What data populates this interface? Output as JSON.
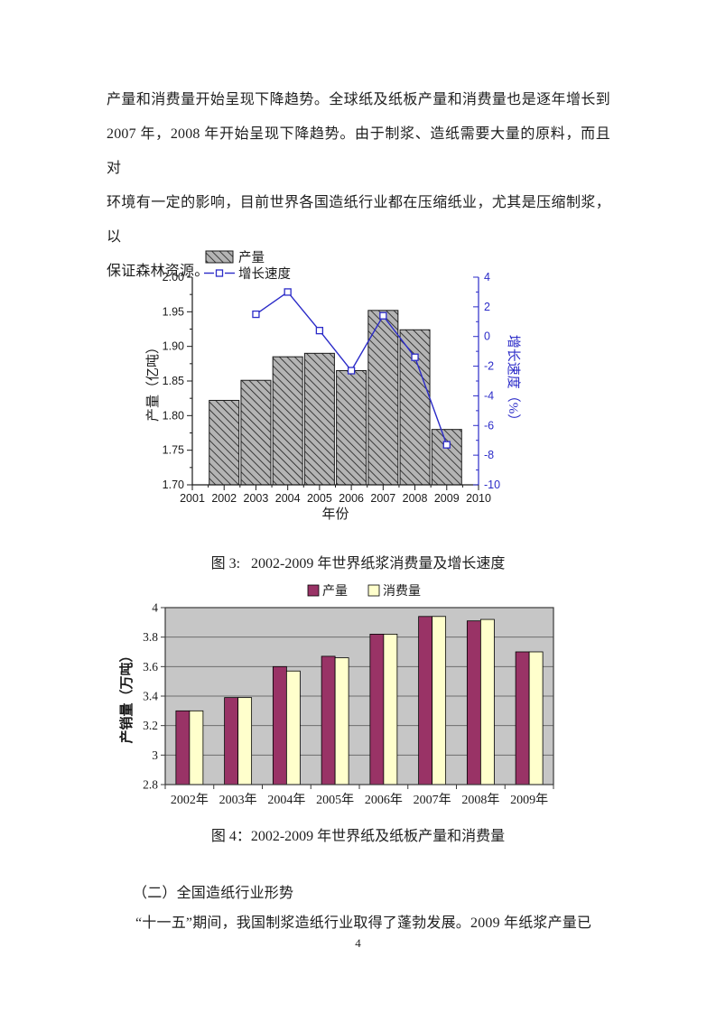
{
  "page": {
    "paragraph_top": {
      "lines": [
        "产量和消费量开始呈现下降趋势。全球纸及纸板产量和消费量也是逐年增长到",
        "2007 年，2008 年开始呈现下降趋势。由于制浆、造纸需要大量的原料，而且对",
        "环境有一定的影响，目前世界各国造纸行业都在压缩纸业，尤其是压缩制浆，以",
        "保证森林资源。"
      ]
    },
    "caption_fig3": "图 3:   2002-2009 年世界纸浆消费量及增长速度",
    "caption_fig4": "图 4：2002-2009 年世界纸及纸板产量和消费量",
    "section_heading": "（二）全国造纸行业形势",
    "paragraph_bottom": "“十一五”期间，我国制浆造纸行业取得了蓬勃发展。2009 年纸浆产量已",
    "page_number": "4"
  },
  "chart_data": [
    {
      "id": "fig3-world-pulp",
      "type": "bar",
      "subtype": "bar-with-growth-line",
      "x_axis": {
        "label": "年份",
        "min": 2001,
        "max": 2010,
        "tick_values": [
          2001,
          2002,
          2003,
          2004,
          2005,
          2006,
          2007,
          2008,
          2009,
          2010
        ],
        "tick_labels": [
          "2001",
          "2002",
          "2003",
          "2004",
          "2005",
          "2006",
          "2007",
          "2008",
          "2009",
          "2010"
        ]
      },
      "y_left": {
        "label": "产量（亿吨）",
        "min": 1.7,
        "max": 2.0,
        "tick_values": [
          2.0,
          1.95,
          1.9,
          1.85,
          1.8,
          1.75,
          1.7
        ],
        "tick_labels": [
          "2.00",
          "1.95",
          "1.90",
          "1.85",
          "1.80",
          "1.75",
          "1.70"
        ],
        "color": "#1a1a1a"
      },
      "y_right": {
        "label": "增长速度（%）",
        "min": -10,
        "max": 4,
        "tick_values": [
          4,
          2,
          0,
          -2,
          -4,
          -6,
          -8,
          -10
        ],
        "tick_labels": [
          "4",
          "2",
          "0",
          "-2",
          "-4",
          "-6",
          "-8",
          "-10"
        ],
        "color": "#2B2BC8"
      },
      "bar_series": {
        "name": "产量",
        "years": [
          2002,
          2003,
          2004,
          2005,
          2006,
          2007,
          2008,
          2009
        ],
        "values": [
          1.822,
          1.851,
          1.885,
          1.89,
          1.865,
          1.952,
          1.924,
          1.78
        ],
        "fill": "gray-diagonal-hatch",
        "fill_base": "#b4b4b4",
        "hatch_color": "#1c1c1c",
        "edge": "#1a1a1a"
      },
      "line_series": {
        "name": "增长速度",
        "years": [
          2003,
          2004,
          2005,
          2006,
          2007,
          2008,
          2009
        ],
        "values": [
          1.5,
          3.0,
          0.4,
          -2.3,
          1.4,
          -1.4,
          -7.3
        ],
        "color": "#2B2BC8",
        "marker": "open-square"
      },
      "legend_position": "top-left-inside"
    },
    {
      "id": "fig4-world-paper-board",
      "type": "bar",
      "categories": [
        "2002年",
        "2003年",
        "2004年",
        "2005年",
        "2006年",
        "2007年",
        "2008年",
        "2009年"
      ],
      "series": [
        {
          "name": "产量",
          "color": "#993366",
          "values": [
            3.3,
            3.39,
            3.6,
            3.67,
            3.82,
            3.94,
            3.91,
            3.7
          ]
        },
        {
          "name": "消费量",
          "color": "#FFFFCC",
          "values": [
            3.3,
            3.39,
            3.57,
            3.66,
            3.82,
            3.94,
            3.92,
            3.7
          ]
        }
      ],
      "ylabel": "产销量（万吨）",
      "ylim": [
        2.8,
        4.0
      ],
      "ytick_values": [
        4.0,
        3.8,
        3.6,
        3.4,
        3.2,
        3.0,
        2.8
      ],
      "ytick_labels": [
        "4",
        "3.8",
        "3.6",
        "3.4",
        "3.2",
        "3",
        "2.8"
      ],
      "plot_bg": "#C6C6C6",
      "grid_color": "#6e6e6e",
      "border_color": "#3a3a3a",
      "legend_position": "top-center"
    }
  ]
}
